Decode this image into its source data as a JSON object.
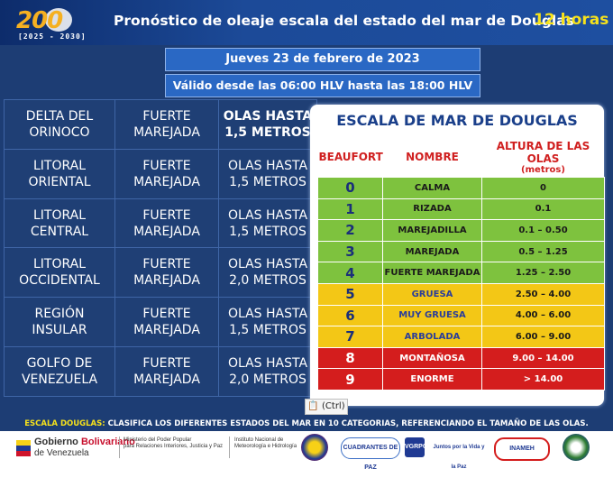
{
  "header": {
    "logo_number": "200",
    "logo_years": "[2025 - 2030]",
    "title": "Pronóstico de oleaje escala del estado del mar de Douglas",
    "hours": "12 horas"
  },
  "date": "Jueves 23 de febrero de 2023",
  "validity": "Válido desde las 06:00 HLV hasta las 18:00 HLV",
  "zones": [
    {
      "region_l1": "DELTA DEL",
      "region_l2": "ORINOCO",
      "state_l1": "FUERTE",
      "state_l2": "MAREJADA",
      "waves_l1": "OLAS HASTA",
      "waves_l2": "1,5 METROS"
    },
    {
      "region_l1": "LITORAL",
      "region_l2": "ORIENTAL",
      "state_l1": "FUERTE",
      "state_l2": "MAREJADA",
      "waves_l1": "OLAS HASTA",
      "waves_l2": "1,5 METROS"
    },
    {
      "region_l1": "LITORAL",
      "region_l2": "CENTRAL",
      "state_l1": "FUERTE",
      "state_l2": "MAREJADA",
      "waves_l1": "OLAS HASTA",
      "waves_l2": "1,5 METROS"
    },
    {
      "region_l1": "LITORAL",
      "region_l2": "OCCIDENTAL",
      "state_l1": "FUERTE",
      "state_l2": "MAREJADA",
      "waves_l1": "OLAS HASTA",
      "waves_l2": "2,0 METROS"
    },
    {
      "region_l1": "REGIÓN",
      "region_l2": "INSULAR",
      "state_l1": "FUERTE",
      "state_l2": "MAREJADA",
      "waves_l1": "OLAS HASTA",
      "waves_l2": "1,5 METROS"
    },
    {
      "region_l1": "GOLFO DE",
      "region_l2": "VENEZUELA",
      "state_l1": "FUERTE",
      "state_l2": "MAREJADA",
      "waves_l1": "OLAS HASTA",
      "waves_l2": "2,0 METROS"
    }
  ],
  "scale": {
    "title": "ESCALA DE MAR DE DOUGLAS",
    "col_beaufort": "BEAUFORT",
    "col_name": "NOMBRE",
    "col_height": "ALTURA DE LAS OLAS",
    "col_height_unit": "(metros)",
    "rows": [
      {
        "n": "0",
        "name": "CALMA",
        "h": "0",
        "color": "green"
      },
      {
        "n": "1",
        "name": "RIZADA",
        "h": "0.1",
        "color": "green"
      },
      {
        "n": "2",
        "name": "MAREJADILLA",
        "h": "0.1 – 0.50",
        "color": "green"
      },
      {
        "n": "3",
        "name": "MAREJADA",
        "h": "0.5 – 1.25",
        "color": "green"
      },
      {
        "n": "4",
        "name": "FUERTE MAREJADA",
        "h": "1.25 – 2.50",
        "color": "green"
      },
      {
        "n": "5",
        "name": "GRUESA",
        "h": "2.50 – 4.00",
        "color": "yellow"
      },
      {
        "n": "6",
        "name": "MUY GRUESA",
        "h": "4.00 – 6.00",
        "color": "yellow"
      },
      {
        "n": "7",
        "name": "ARBOLADA",
        "h": "6.00 – 9.00",
        "color": "yellow"
      },
      {
        "n": "8",
        "name": "MONTAÑOSA",
        "h": "9.00 – 14.00",
        "color": "red"
      },
      {
        "n": "9",
        "name": "ENORME",
        "h": "> 14.00",
        "color": "red"
      }
    ],
    "colors": {
      "green": "#7ec23e",
      "yellow": "#f3c716",
      "red": "#d41d1d"
    }
  },
  "ctrl_popup": "(Ctrl)",
  "footnote": {
    "key": "ESCALA DOUGLAS:",
    "text": "CLASIFICA LOS DIFERENTES ESTADOS DEL MAR EN 10 CATEGORIAS, REFERENCIANDO EL TAMAÑO DE LAS OLAS."
  },
  "footer": {
    "gob_word1": "Gobierno",
    "gob_word2": "Bolivariano",
    "gob_line2": "de Venezuela",
    "ministry_l1": "Ministerio del Poder Popular",
    "ministry_l2": "para Relaciones Interiores, Justicia y Paz",
    "inameh_l1": "Instituto Nacional de",
    "inameh_l2": "Meteorología e Hidrología",
    "badge1": "CUADRANTES DE PAZ",
    "badge2": "VGRPC",
    "badge3": "Juntos por la Vida y la Paz",
    "badge4": "INAMEH"
  }
}
